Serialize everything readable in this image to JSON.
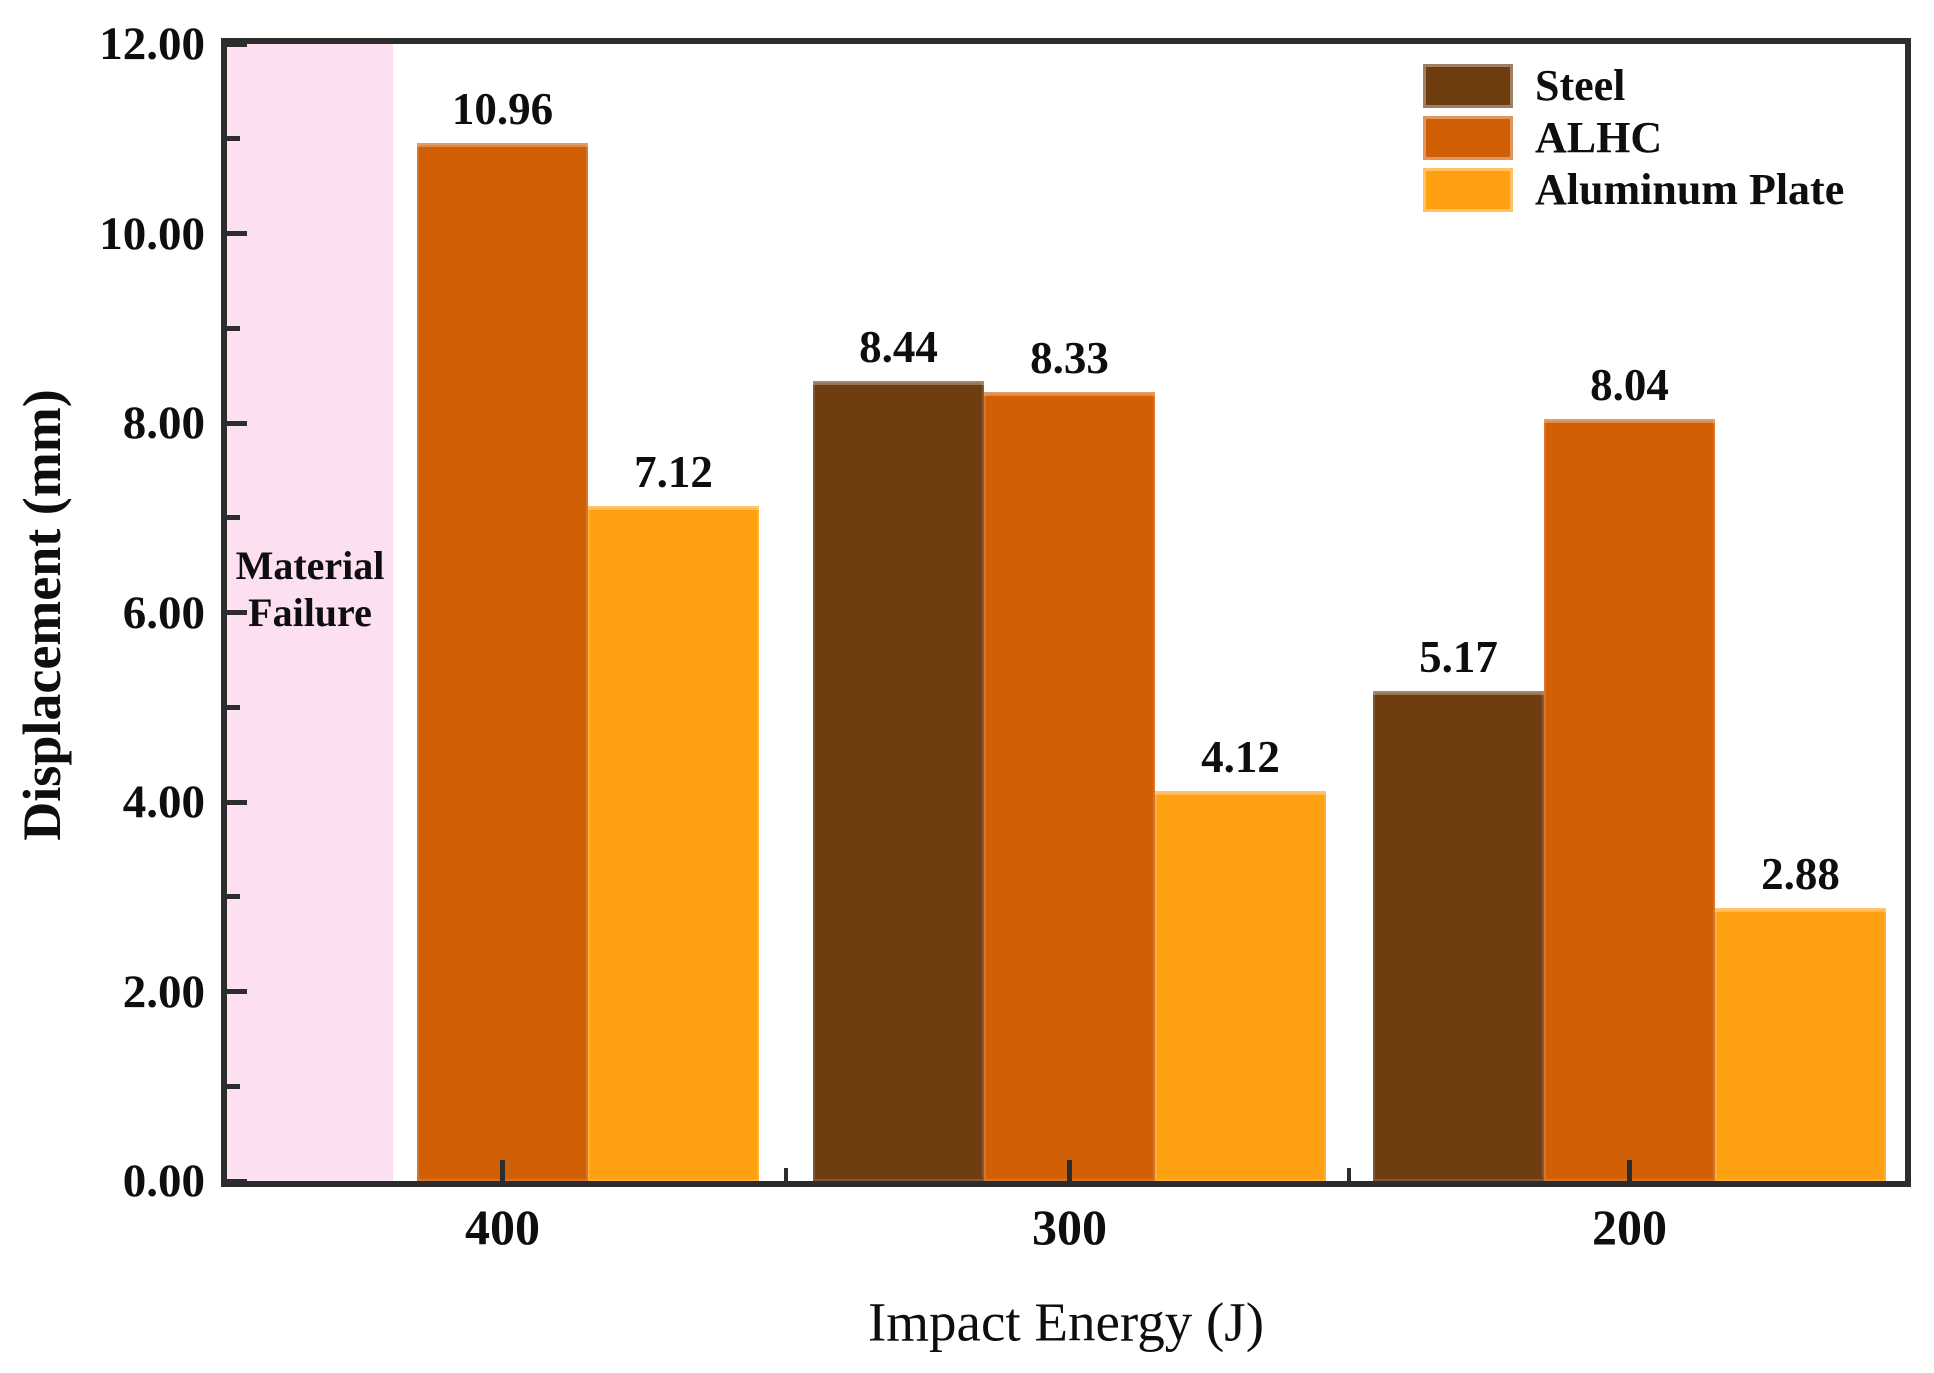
{
  "figure": {
    "background": "#ffffff",
    "axis_color": "#2d2d2d",
    "text_color": "#0e0e0e"
  },
  "chart_data": {
    "type": "bar",
    "title": "",
    "xlabel": "Impact Energy (J)",
    "ylabel": "Displacement (mm)",
    "categories": [
      "400",
      "300",
      "200"
    ],
    "series": [
      {
        "name": "Steel",
        "color": "#6e3d10",
        "values": [
          null,
          8.44,
          5.17
        ]
      },
      {
        "name": "ALHC",
        "color": "#d05f06",
        "values": [
          10.96,
          8.33,
          8.04
        ]
      },
      {
        "name": "Aluminum Plate",
        "color": "#ffa011",
        "values": [
          7.12,
          4.12,
          2.88
        ]
      }
    ],
    "ylim": [
      0,
      12
    ],
    "y_tick_labels": [
      "0.00",
      "2.00",
      "4.00",
      "6.00",
      "8.00",
      "10.00",
      "12.00"
    ],
    "x_tick_labels": [
      "400",
      "300",
      "200"
    ],
    "grid": false,
    "legend_position": "top-right",
    "tick_direction": "in",
    "annotation": {
      "lines": [
        "Material",
        "Failure"
      ],
      "region_color": "#fcdff0",
      "meaning": "Steel bar absent at 400 J (material failed); shaded band spans full y-range at left of plot"
    }
  }
}
